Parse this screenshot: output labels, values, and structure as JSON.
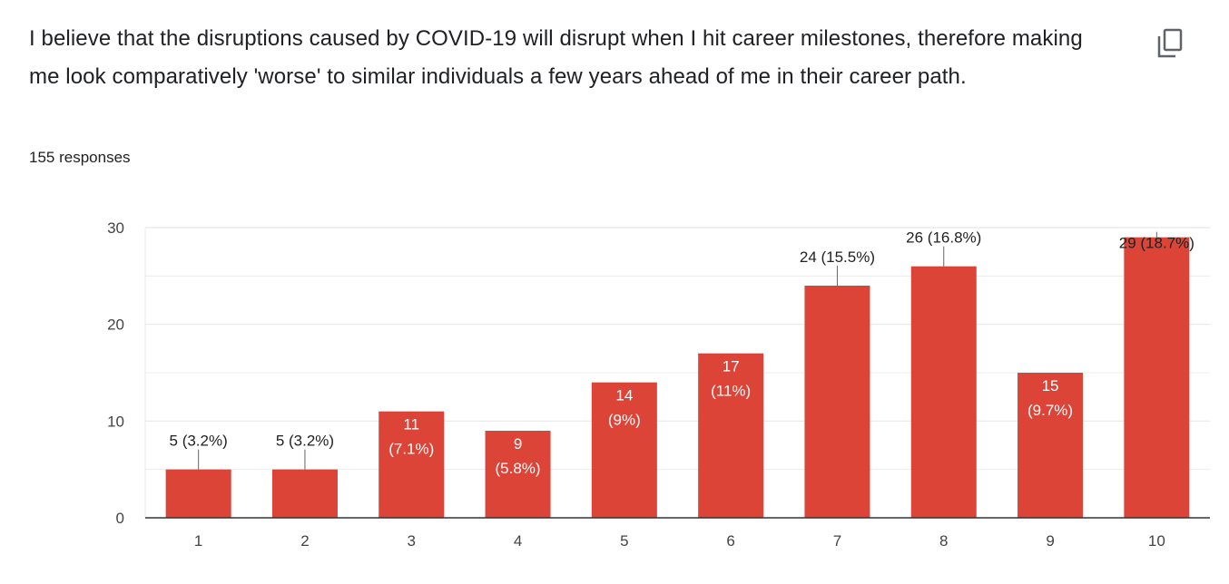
{
  "question": {
    "title": "I believe that the disruptions caused by COVID-19 will disrupt when I hit career milestones, therefore making me look comparatively 'worse' to similar individuals a few years ahead of me in their career path.",
    "response_count": "155 responses"
  },
  "icons": {
    "copy": "copy-icon"
  },
  "colors": {
    "bar": "#DB4437",
    "gridline": "#e8e8e8",
    "axis": "#333333"
  },
  "chart_data": {
    "type": "bar",
    "categories": [
      "1",
      "2",
      "3",
      "4",
      "5",
      "6",
      "7",
      "8",
      "9",
      "10"
    ],
    "values": [
      5,
      5,
      11,
      9,
      14,
      17,
      24,
      26,
      15,
      29
    ],
    "data_labels": [
      [
        "5 (3.2%)"
      ],
      [
        "5 (3.2%)"
      ],
      [
        "11",
        "(7.1%)"
      ],
      [
        "9",
        "(5.8%)"
      ],
      [
        "14",
        "(9%)"
      ],
      [
        "17",
        "(11%)"
      ],
      [
        "24 (15.5%)"
      ],
      [
        "26 (16.8%)"
      ],
      [
        "15",
        "(9.7%)"
      ],
      [
        "29 (18.7%)"
      ]
    ],
    "label_inside": [
      false,
      false,
      true,
      true,
      true,
      true,
      false,
      false,
      true,
      false
    ],
    "yticks": [
      0,
      10,
      20,
      30
    ],
    "ylim": [
      0,
      30
    ],
    "grid": true,
    "title": "",
    "xlabel": "",
    "ylabel": ""
  }
}
